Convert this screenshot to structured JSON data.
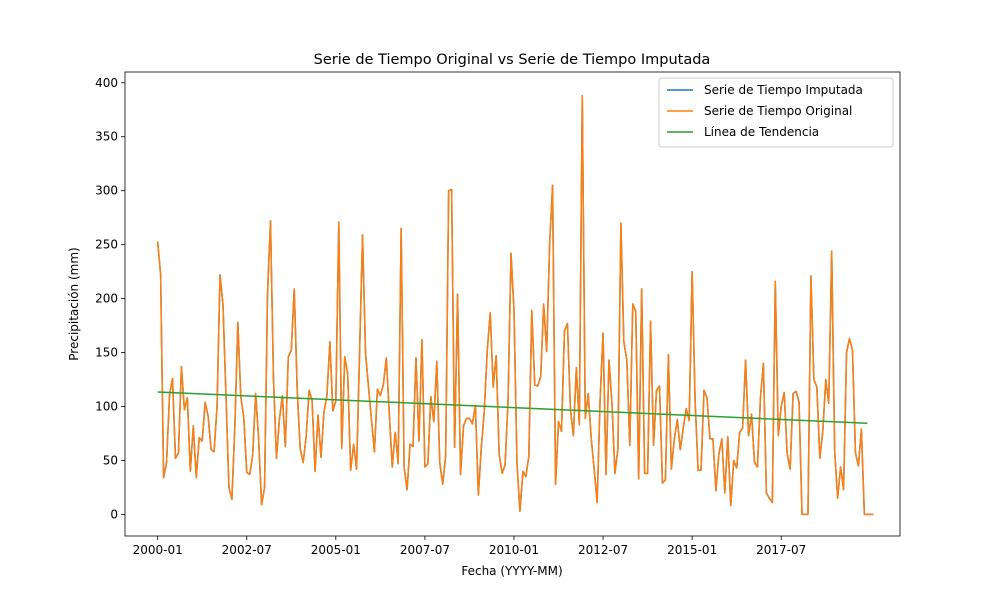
{
  "chart_data": {
    "type": "line",
    "title": "Serie de Tiempo Original vs Serie de Tiempo Imputada",
    "xlabel": "Fecha (YYYY-MM)",
    "ylabel": "Precipitación (mm)",
    "x_start": "2000-01",
    "x_end": "2019-12",
    "xlim": [
      "1999-02",
      "2020-11"
    ],
    "ylim": [
      -20,
      410
    ],
    "x_ticks": [
      "2000-01",
      "2002-07",
      "2005-01",
      "2007-07",
      "2010-01",
      "2012-07",
      "2015-01",
      "2017-07"
    ],
    "y_ticks": [
      0,
      50,
      100,
      150,
      200,
      250,
      300,
      350,
      400
    ],
    "legend_position": "top-right",
    "series": [
      {
        "name": "Serie de Tiempo Imputada",
        "color": "#1f77b4",
        "values": [
          253,
          222,
          34,
          48,
          111,
          126,
          52,
          57,
          137,
          97,
          108,
          40,
          82,
          34,
          71,
          68,
          104,
          91,
          60,
          58,
          100,
          222,
          194,
          110,
          25,
          14,
          82,
          178,
          109,
          90,
          39,
          37,
          55,
          112,
          70,
          9,
          25,
          205,
          272,
          126,
          52,
          88,
          110,
          63,
          146,
          152,
          209,
          115,
          61,
          48,
          72,
          115,
          106,
          40,
          92,
          53,
          95,
          110,
          160,
          96,
          105,
          271,
          61,
          146,
          130,
          41,
          65,
          42,
          150,
          259,
          150,
          118,
          88,
          58,
          116,
          110,
          120,
          145,
          94,
          44,
          76,
          47,
          265,
          44,
          23,
          65,
          63,
          145,
          68,
          162,
          44,
          47,
          109,
          86,
          142,
          48,
          28,
          55,
          300,
          301,
          62,
          204,
          37,
          82,
          89,
          89,
          84,
          101,
          18,
          62,
          96,
          152,
          187,
          118,
          147,
          56,
          38,
          46,
          105,
          242,
          190,
          48,
          3,
          40,
          35,
          54,
          189,
          120,
          119,
          128,
          195,
          151,
          250,
          305,
          28,
          86,
          77,
          170,
          177,
          98,
          73,
          136,
          83,
          388,
          89,
          112,
          71,
          42,
          11,
          106,
          168,
          37,
          143,
          103,
          38,
          61,
          270,
          160,
          143,
          64,
          195,
          188,
          33,
          209,
          38,
          38,
          179,
          64,
          115,
          119,
          29,
          32,
          148,
          42,
          70,
          88,
          60,
          80,
          98,
          87,
          225,
          105,
          41,
          41,
          115,
          108,
          70,
          70,
          22,
          56,
          70,
          20,
          72,
          8,
          50,
          43,
          76,
          80,
          143,
          73,
          93,
          48,
          44,
          108,
          140,
          20,
          15,
          11,
          216,
          73,
          100,
          113,
          56,
          42,
          112,
          114,
          104,
          0,
          0,
          0,
          221,
          125,
          118,
          52,
          77,
          125,
          103,
          244,
          59,
          15,
          44,
          23,
          150,
          163,
          152,
          57,
          45,
          79,
          0,
          0,
          0,
          0
        ]
      },
      {
        "name": "Serie de Tiempo Original",
        "color": "#ff7f0e",
        "values": [
          253,
          222,
          34,
          48,
          111,
          126,
          52,
          57,
          137,
          97,
          108,
          40,
          82,
          34,
          71,
          68,
          104,
          91,
          60,
          58,
          100,
          222,
          194,
          110,
          25,
          14,
          82,
          178,
          109,
          90,
          39,
          37,
          55,
          112,
          70,
          9,
          25,
          205,
          272,
          126,
          52,
          88,
          110,
          63,
          146,
          152,
          209,
          115,
          61,
          48,
          72,
          115,
          106,
          40,
          92,
          53,
          95,
          110,
          160,
          96,
          105,
          271,
          61,
          146,
          130,
          41,
          65,
          42,
          150,
          259,
          150,
          118,
          88,
          58,
          116,
          110,
          120,
          145,
          94,
          44,
          76,
          47,
          265,
          44,
          23,
          65,
          63,
          145,
          68,
          162,
          44,
          47,
          109,
          86,
          142,
          48,
          28,
          55,
          300,
          301,
          62,
          204,
          37,
          82,
          89,
          89,
          84,
          101,
          18,
          62,
          96,
          152,
          187,
          118,
          147,
          56,
          38,
          46,
          105,
          242,
          190,
          48,
          3,
          40,
          35,
          54,
          189,
          120,
          119,
          128,
          195,
          151,
          250,
          305,
          28,
          86,
          77,
          170,
          177,
          98,
          73,
          136,
          83,
          388,
          89,
          112,
          71,
          42,
          11,
          106,
          168,
          37,
          143,
          103,
          38,
          61,
          270,
          160,
          143,
          64,
          195,
          188,
          33,
          209,
          38,
          38,
          179,
          64,
          115,
          119,
          29,
          32,
          148,
          42,
          70,
          88,
          60,
          80,
          98,
          87,
          225,
          105,
          41,
          41,
          115,
          108,
          70,
          70,
          22,
          56,
          70,
          20,
          72,
          8,
          50,
          43,
          76,
          80,
          143,
          73,
          93,
          48,
          44,
          108,
          140,
          20,
          15,
          11,
          216,
          73,
          100,
          113,
          56,
          42,
          112,
          114,
          104,
          0,
          0,
          0,
          221,
          125,
          118,
          52,
          77,
          125,
          103,
          244,
          59,
          15,
          44,
          23,
          150,
          163,
          152,
          57,
          45,
          79,
          0,
          0,
          0,
          0
        ]
      },
      {
        "name": "Línea de Tendencia",
        "color": "#2ca02c",
        "x": [
          "2000-01",
          "2019-12"
        ],
        "values": [
          113.5,
          84.5
        ]
      }
    ]
  }
}
